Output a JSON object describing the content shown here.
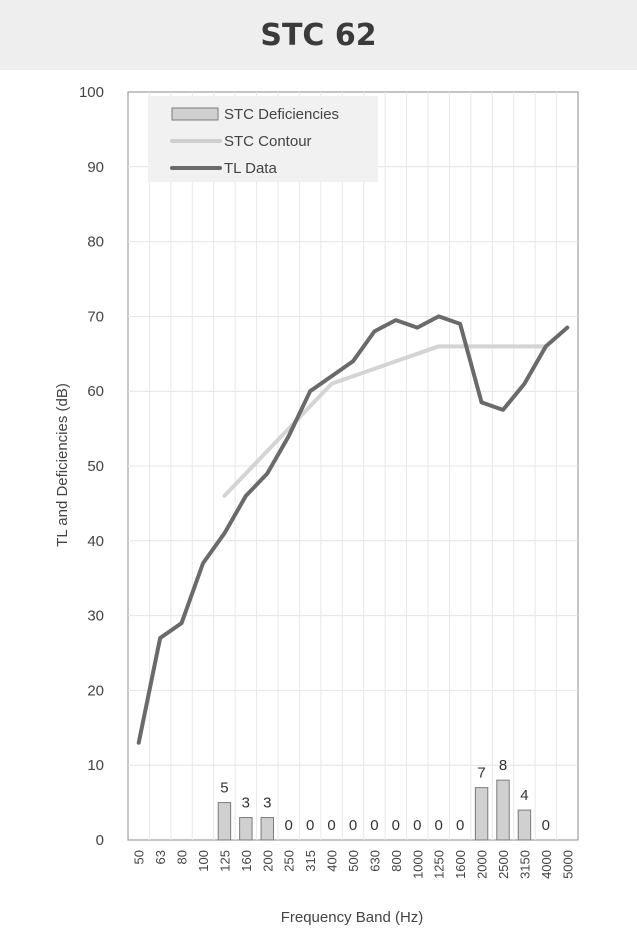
{
  "page_title": "STC 62",
  "chart_data": {
    "type": "line",
    "xlabel": "Frequency Band (Hz)",
    "ylabel": "TL and Deficiencies (dB)",
    "ylim": [
      0,
      100
    ],
    "yticks": [
      "0",
      "10",
      "20",
      "30",
      "40",
      "50",
      "60",
      "70",
      "80",
      "90",
      "100"
    ],
    "categories": [
      "50",
      "63",
      "80",
      "100",
      "125",
      "160",
      "200",
      "250",
      "315",
      "400",
      "500",
      "630",
      "800",
      "1000",
      "1250",
      "1600",
      "2000",
      "2500",
      "3150",
      "4000",
      "5000"
    ],
    "legend": {
      "placement": "top-left"
    },
    "grid": true,
    "series": [
      {
        "name": "STC Deficiencies",
        "kind": "bar",
        "color": "#d0d0d0",
        "values": [
          null,
          null,
          null,
          null,
          5,
          3,
          3,
          0,
          0,
          0,
          0,
          0,
          0,
          0,
          0,
          0,
          7,
          8,
          4,
          0,
          null
        ],
        "labels": [
          "",
          "",
          "",
          "",
          "5",
          "3",
          "3",
          "0",
          "0",
          "0",
          "0",
          "0",
          "0",
          "0",
          "0",
          "0",
          "7",
          "8",
          "4",
          "0",
          ""
        ]
      },
      {
        "name": "STC Contour",
        "kind": "line",
        "color": "#cfcfcf",
        "values": [
          null,
          null,
          null,
          null,
          46,
          49,
          52,
          55,
          58,
          61,
          62,
          63,
          64,
          65,
          66,
          66,
          66,
          66,
          66,
          66,
          null
        ]
      },
      {
        "name": "TL Data",
        "kind": "line",
        "color": "#6a6a6a",
        "values": [
          13,
          27,
          29,
          37,
          41,
          46,
          49,
          54,
          60,
          62,
          64,
          68,
          69.5,
          68.5,
          70,
          69,
          58.5,
          57.5,
          61,
          66,
          68.5
        ]
      }
    ]
  }
}
